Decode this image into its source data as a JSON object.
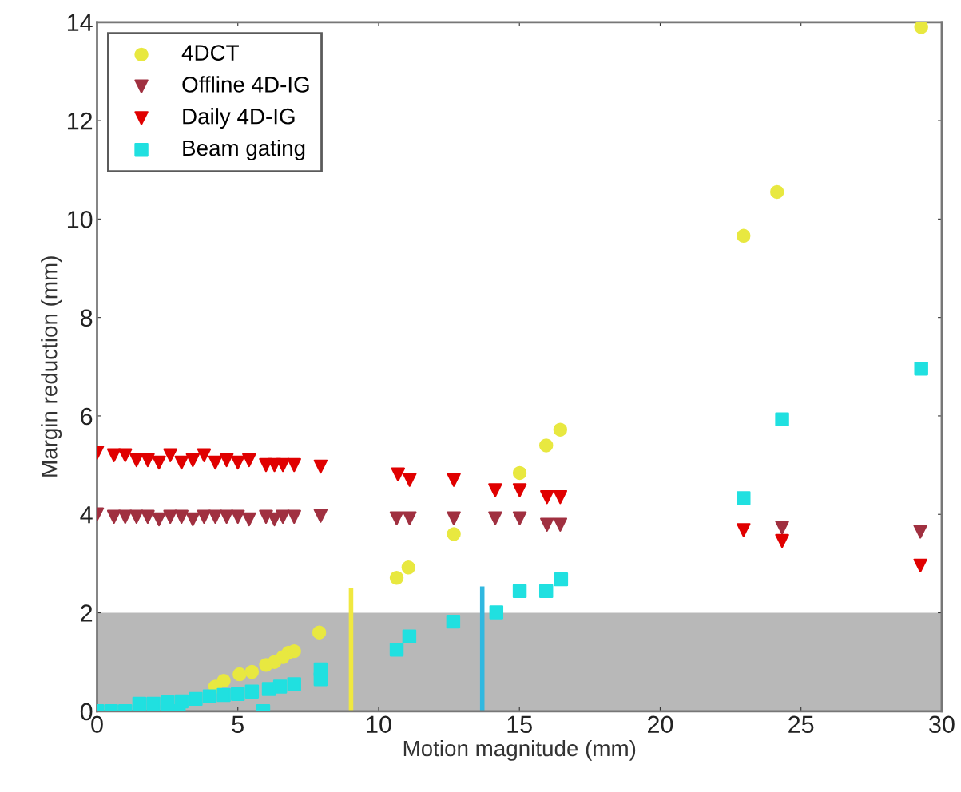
{
  "chart_data": {
    "type": "scatter",
    "xlabel": "Motion magnitude (mm)",
    "ylabel": "Margin reduction (mm)",
    "xlim": [
      0,
      30
    ],
    "ylim": [
      0,
      14
    ],
    "xticks": [
      0,
      5,
      10,
      15,
      20,
      25,
      30
    ],
    "yticks": [
      0,
      2,
      4,
      6,
      8,
      10,
      12,
      14
    ],
    "grid": false,
    "legend": "top left",
    "bands": [
      {
        "axis": "y",
        "from": 0,
        "to": 2,
        "color": "#b8b8b8"
      }
    ],
    "series": [
      {
        "name": "4DCT",
        "color": "#e8e840",
        "marker": "circle",
        "x": [
          0,
          0.5,
          1,
          3,
          3.4,
          3.8,
          4.2,
          4.5,
          5.06,
          5.5,
          6.0,
          6.3,
          6.6,
          6.8,
          7.0,
          7.89,
          10.64,
          11.06,
          12.67,
          15.01,
          15.95,
          16.45,
          22.96,
          24.15,
          29.27
        ],
        "values": [
          0,
          null,
          null,
          null,
          null,
          null,
          0.5,
          0.62,
          0.75,
          0.8,
          0.94,
          1.0,
          1.1,
          1.19,
          1.22,
          1.6,
          2.71,
          2.92,
          3.6,
          4.84,
          5.4,
          5.72,
          9.66,
          10.55,
          13.9
        ]
      },
      {
        "name": "Offline 4D-IG",
        "color": "#a03040",
        "marker": "triangle",
        "x": [
          0,
          0.6,
          1.0,
          1.4,
          1.8,
          2.2,
          2.6,
          3.0,
          3.4,
          3.8,
          4.2,
          4.6,
          5.0,
          5.4,
          6.0,
          6.3,
          6.6,
          7.0,
          7.94,
          10.64,
          11.1,
          12.67,
          14.14,
          15.01,
          15.98,
          16.45,
          22.96,
          24.33,
          29.24
        ],
        "values": [
          4.0,
          3.95,
          3.95,
          3.95,
          3.95,
          3.9,
          3.95,
          3.95,
          3.9,
          3.95,
          3.95,
          3.95,
          3.95,
          3.9,
          3.95,
          3.9,
          3.95,
          3.95,
          3.97,
          3.92,
          3.92,
          3.92,
          3.92,
          3.92,
          3.79,
          3.79,
          null,
          3.73,
          3.65
        ]
      },
      {
        "name": "Daily 4D-IG",
        "color": "#e00000",
        "marker": "triangle",
        "x": [
          0,
          0.6,
          1.0,
          1.4,
          1.8,
          2.2,
          2.6,
          3.0,
          3.4,
          3.8,
          4.2,
          4.6,
          5.0,
          5.4,
          6.0,
          6.3,
          6.6,
          7.0,
          7.94,
          10.69,
          11.1,
          12.67,
          14.14,
          15.01,
          15.98,
          16.45,
          22.96,
          24.33,
          29.24
        ],
        "values": [
          5.25,
          5.2,
          5.2,
          5.1,
          5.1,
          5.05,
          5.2,
          5.05,
          5.1,
          5.2,
          5.05,
          5.1,
          5.05,
          5.1,
          5.0,
          5.0,
          5.0,
          5.0,
          4.97,
          4.81,
          4.7,
          4.7,
          4.49,
          4.49,
          4.35,
          4.35,
          3.68,
          3.46,
          2.96
        ]
      },
      {
        "name": "Beam gating",
        "color": "#20e0e0",
        "marker": "square",
        "x": [
          0,
          0.5,
          1,
          2.5,
          2.9,
          1.5,
          2,
          2.5,
          3,
          3.5,
          4,
          4.5,
          5,
          5.5,
          5.9,
          6.1,
          6.5,
          7,
          7.94,
          7.94,
          10.64,
          11.09,
          12.65,
          14.18,
          15.01,
          15.95,
          16.48,
          22.96,
          24.33,
          29.27
        ],
        "values": [
          0,
          0,
          0,
          0,
          0,
          0.15,
          0.15,
          0.18,
          0.2,
          0.25,
          0.3,
          0.33,
          0.35,
          0.4,
          0,
          0.45,
          0.5,
          0.55,
          0.65,
          0.85,
          1.25,
          1.52,
          1.82,
          2.01,
          2.44,
          2.44,
          2.68,
          4.33,
          5.93,
          6.96
        ]
      },
      {
        "type": "line",
        "color": "#f0e840",
        "marker": "none",
        "x": [
          9.02,
          9.02
        ],
        "values": [
          0,
          2.46
        ]
      },
      {
        "type": "line",
        "color": "#30b8e0",
        "marker": "none",
        "x": [
          13.68,
          13.68
        ],
        "values": [
          0,
          2.49
        ]
      }
    ]
  }
}
